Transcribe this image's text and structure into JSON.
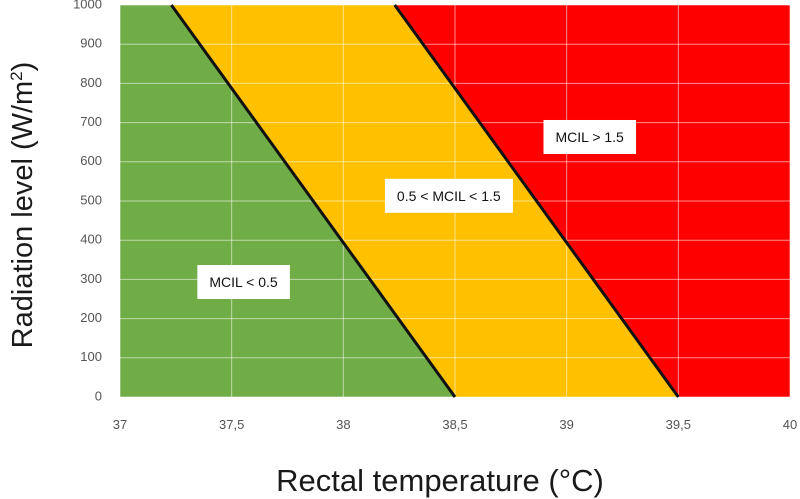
{
  "chart_data": {
    "type": "area",
    "xlabel": "Rectal temperature (°C)",
    "ylabel_main": "Radiation level (W/m",
    "ylabel_sup": "2",
    "ylabel_end": ")",
    "xlim": [
      37,
      40
    ],
    "ylim": [
      0,
      1000
    ],
    "x_ticks": [
      "37",
      "37,5",
      "38",
      "38,5",
      "39",
      "39,5",
      "40"
    ],
    "y_ticks": [
      "0",
      "100",
      "200",
      "300",
      "400",
      "500",
      "600",
      "700",
      "800",
      "900",
      "1000"
    ],
    "grid": true,
    "boundaries": [
      {
        "name": "MCIL = 0.5",
        "points": [
          [
            37.23,
            1000
          ],
          [
            38.5,
            0
          ]
        ]
      },
      {
        "name": "MCIL = 1.5",
        "points": [
          [
            38.23,
            1000
          ],
          [
            39.5,
            0
          ]
        ]
      }
    ],
    "regions": [
      {
        "label": "MCIL < 0.5",
        "color": "#70ad47",
        "label_x": 37.4,
        "label_y": 290
      },
      {
        "label": "0.5 < MCIL < 1.5",
        "color": "#ffc000",
        "label_x": 38.24,
        "label_y": 510
      },
      {
        "label": "MCIL > 1.5",
        "color": "#ff0000",
        "label_x": 38.95,
        "label_y": 660
      }
    ]
  }
}
